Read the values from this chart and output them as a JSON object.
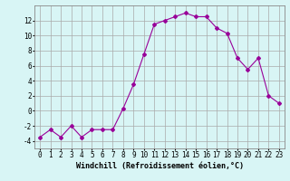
{
  "x": [
    0,
    1,
    2,
    3,
    4,
    5,
    6,
    7,
    8,
    9,
    10,
    11,
    12,
    13,
    14,
    15,
    16,
    17,
    18,
    19,
    20,
    21,
    22,
    23
  ],
  "y": [
    -3.5,
    -2.5,
    -3.5,
    -2.0,
    -3.5,
    -2.5,
    -2.5,
    -2.5,
    0.3,
    3.5,
    7.5,
    11.5,
    12.0,
    12.5,
    13.0,
    12.5,
    12.5,
    11.0,
    10.3,
    7.0,
    5.5,
    7.0,
    2.0,
    1.0
  ],
  "line_color": "#990099",
  "marker": "D",
  "marker_size": 2,
  "bg_color": "#d8f5f5",
  "grid_color": "#aaaaaa",
  "xlabel": "Windchill (Refroidissement éolien,°C)",
  "xlabel_fontsize": 6,
  "tick_fontsize": 5.5,
  "xlim": [
    -0.5,
    23.5
  ],
  "ylim": [
    -5,
    14
  ],
  "yticks": [
    -4,
    -2,
    0,
    2,
    4,
    6,
    8,
    10,
    12
  ],
  "xticks": [
    0,
    1,
    2,
    3,
    4,
    5,
    6,
    7,
    8,
    9,
    10,
    11,
    12,
    13,
    14,
    15,
    16,
    17,
    18,
    19,
    20,
    21,
    22,
    23
  ]
}
